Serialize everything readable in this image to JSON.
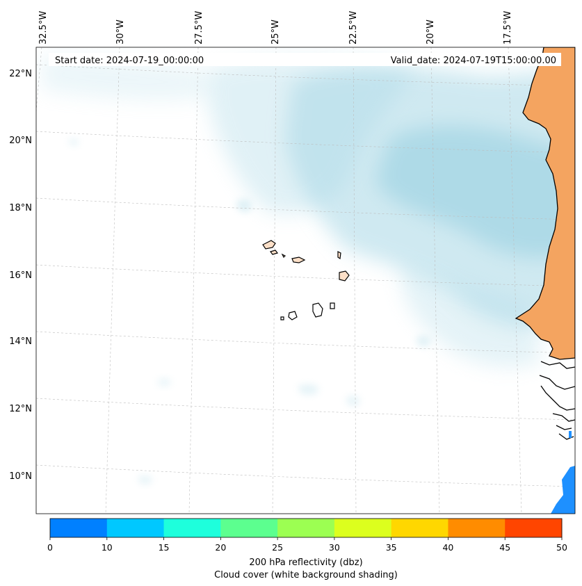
{
  "map": {
    "start_date": "Start date: 2024-07-19_00:00:00",
    "valid_date": "Valid_date: 2024-07-19T15:00:00.00",
    "lon_labels": [
      "32.5°W",
      "30°W",
      "27.5°W",
      "25°W",
      "22.5°W",
      "20°W",
      "17.5°W"
    ],
    "lat_labels": [
      "22°N",
      "20°N",
      "18°N",
      "16°N",
      "14°N",
      "12°N",
      "10°N"
    ],
    "land_color": "#f4a460",
    "cloud_color": "#a9d8e6",
    "coastline_color": "#000000"
  },
  "colorbar": {
    "ticks": [
      "0",
      "10",
      "15",
      "20",
      "25",
      "30",
      "35",
      "40",
      "45",
      "50"
    ],
    "colors": [
      "#0080ff",
      "#00c8ff",
      "#1effdc",
      "#5cff8f",
      "#9cff52",
      "#dcff1e",
      "#ffd700",
      "#ff8c00",
      "#ff4500"
    ],
    "label_line1": "200 hPa reflectivity (dbz)",
    "label_line2": "Cloud cover (white background shading)"
  }
}
